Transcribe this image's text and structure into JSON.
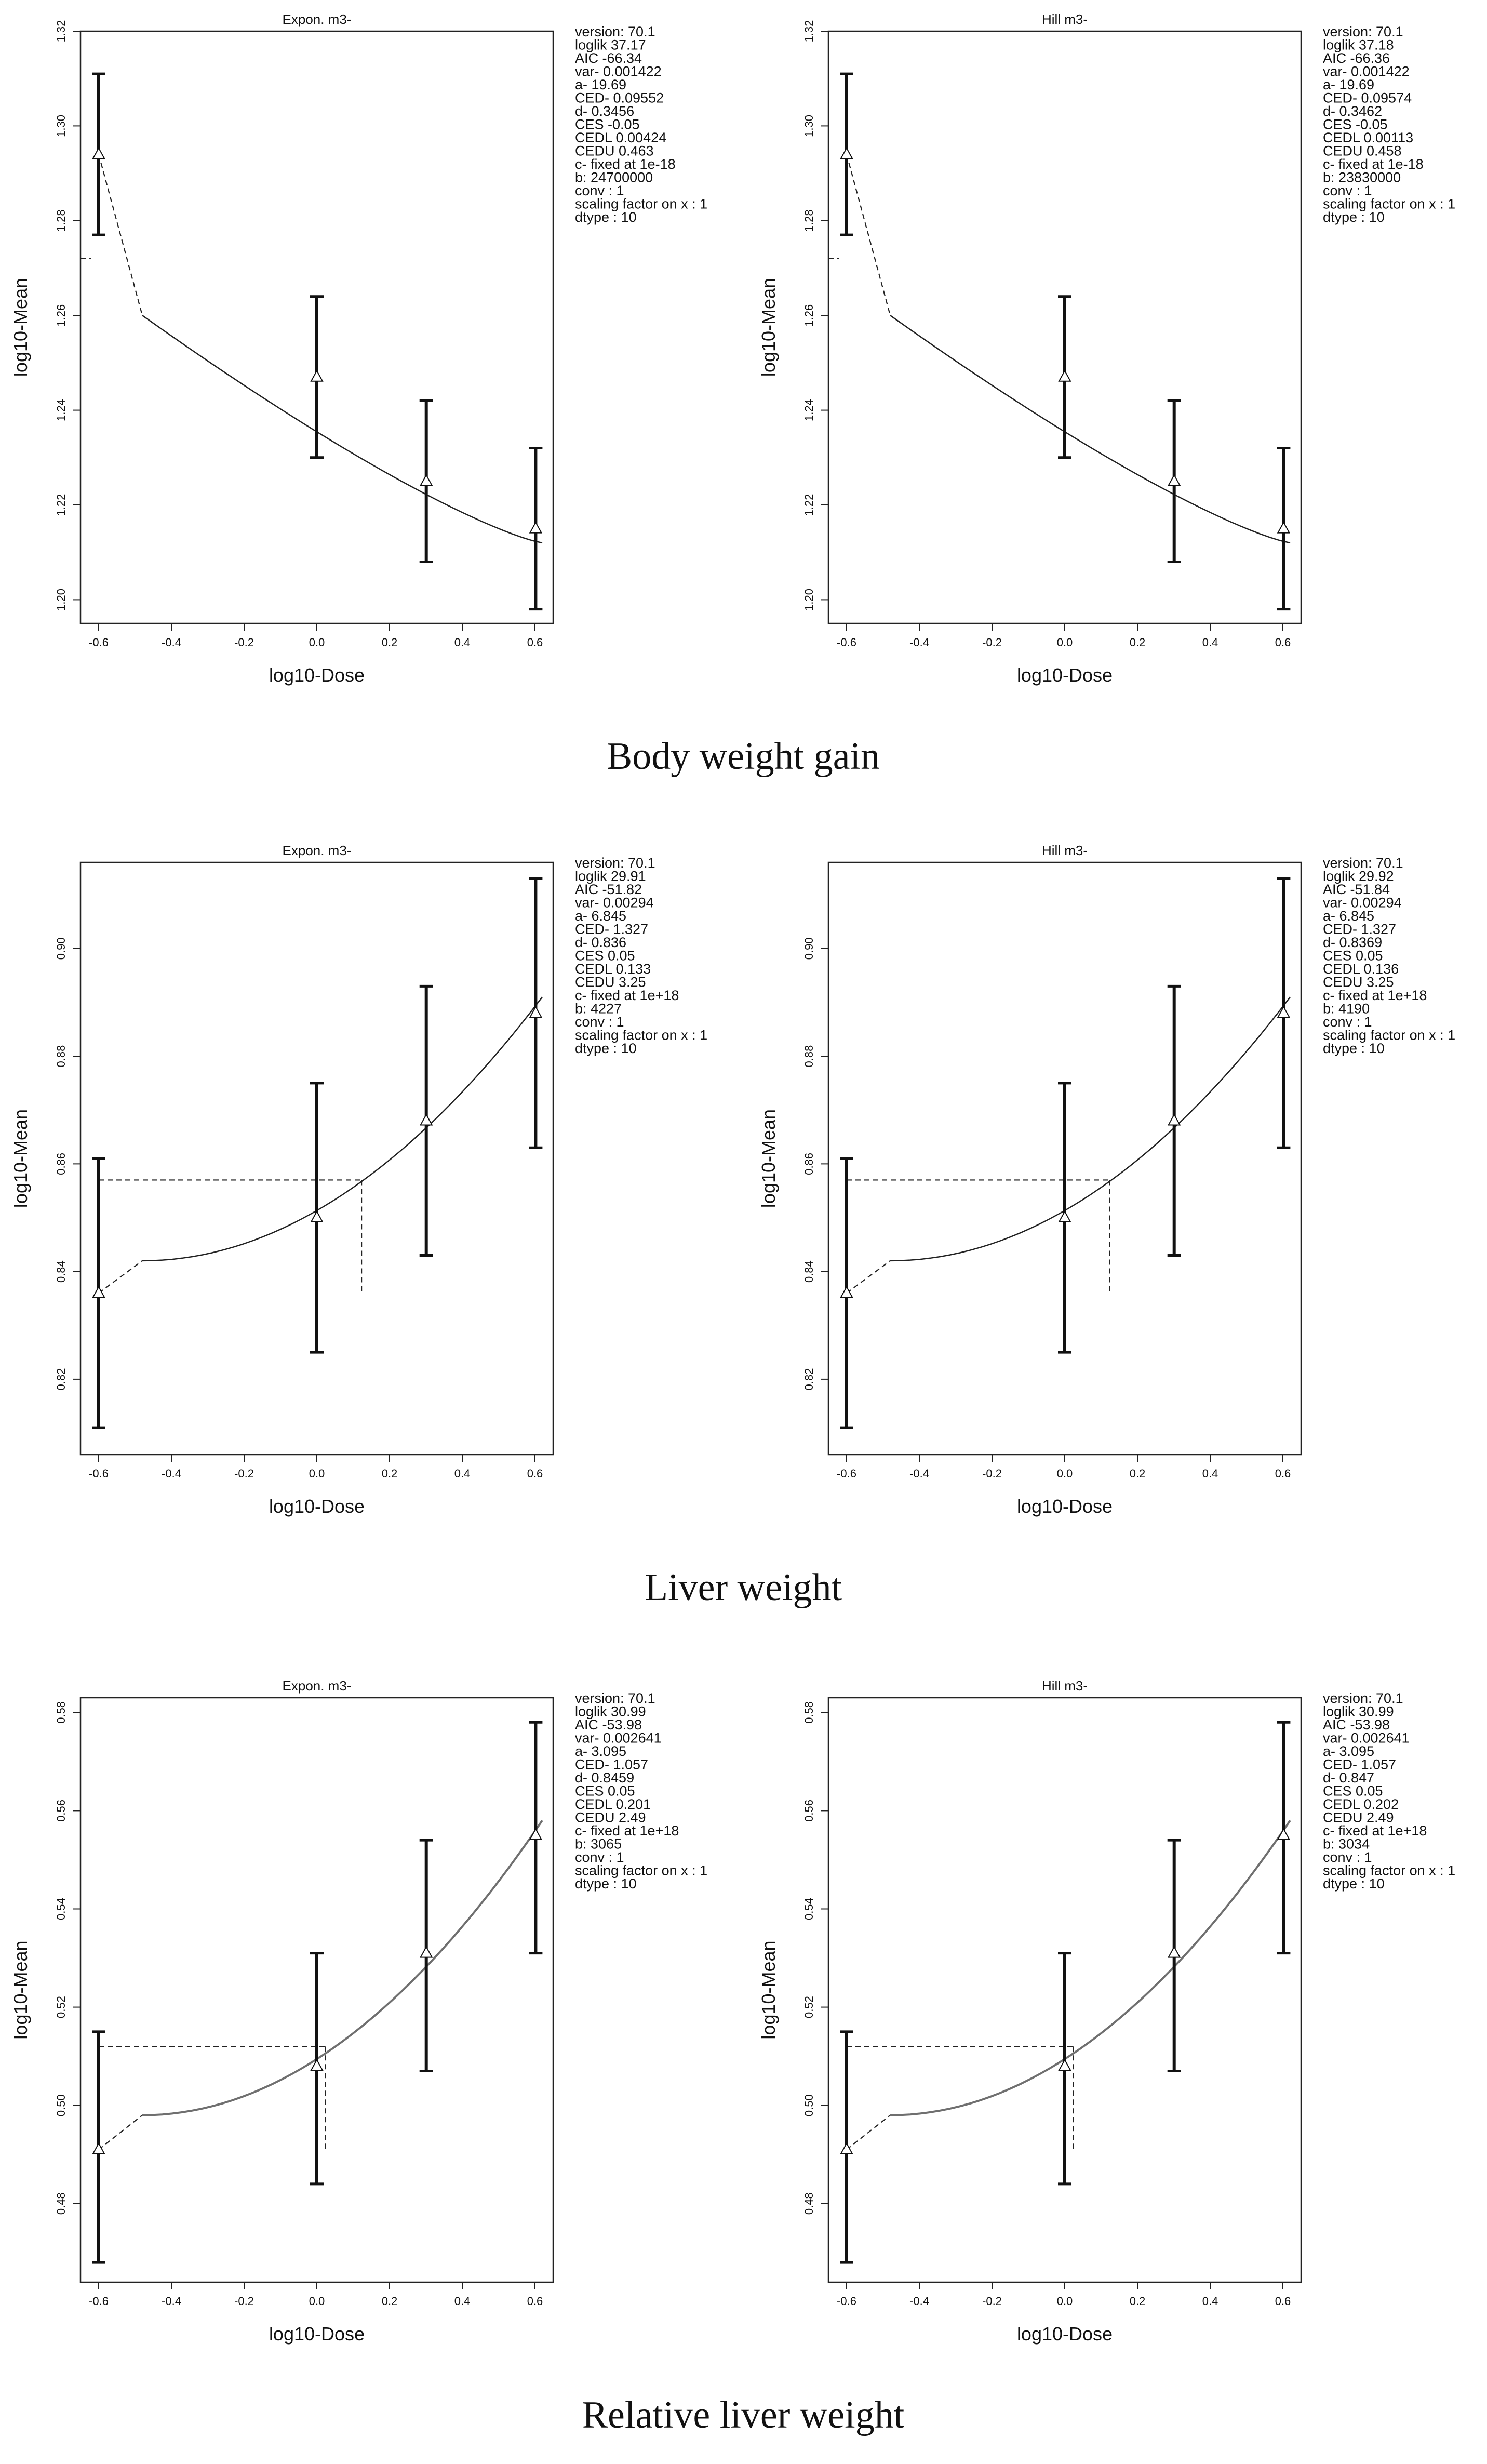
{
  "figure": {
    "captions": [
      "Body weight gain",
      "Liver weight",
      "Relative liver weight"
    ]
  },
  "chart_data": [
    {
      "type": "line",
      "section": "Body weight gain",
      "model": "exponential",
      "title": "Expon. m3-",
      "xlabel": "log10-Dose",
      "ylabel": "log10-Mean",
      "xlim": [
        -0.65,
        0.65
      ],
      "ylim": [
        1.195,
        1.32
      ],
      "xticks": [
        -0.6,
        -0.4,
        -0.2,
        0.0,
        0.2,
        0.4,
        0.6
      ],
      "xtick_labels": [
        "-0.6",
        "-0.4",
        "-0.2",
        "0.0",
        "0.2",
        "0.4",
        "0.6"
      ],
      "yticks": [
        1.2,
        1.22,
        1.24,
        1.26,
        1.28,
        1.3,
        1.32
      ],
      "ytick_labels": [
        "1.20",
        "1.22",
        "1.24",
        "1.26",
        "1.28",
        "1.30",
        "1.32"
      ],
      "points": [
        {
          "x": -0.6,
          "y": 1.294,
          "lo": 1.277,
          "hi": 1.311
        },
        {
          "x": 0.0,
          "y": 1.247,
          "lo": 1.23,
          "hi": 1.264
        },
        {
          "x": 0.301,
          "y": 1.225,
          "lo": 1.208,
          "hi": 1.242
        },
        {
          "x": 0.602,
          "y": 1.215,
          "lo": 1.198,
          "hi": 1.232
        }
      ],
      "curve": {
        "kind": "down",
        "a": 19.69,
        "b": 24700000,
        "d": 0.3456,
        "x0": -0.48,
        "y0": 1.26,
        "x1": 0.62,
        "y1": 1.212
      },
      "dashed": [
        {
          "x1": -0.6,
          "y1": 1.294,
          "x2": -0.48,
          "y2": 1.26
        },
        {
          "x1": -0.65,
          "y1": 1.272,
          "x2": -0.62,
          "y2": 1.272
        }
      ],
      "params": [
        "version: 70.1",
        "loglik   37.17",
        "AIC   -66.34",
        "var-   0.001422",
        "a-   19.69",
        "CED-   0.09552",
        "d-   0.3456",
        "CES   -0.05",
        "CEDL   0.00424",
        "CEDU   0.463",
        "c-  fixed at 1e-18",
        "b:  24700000",
        "conv :  1",
        "scaling factor on x :  1",
        "dtype :  10"
      ]
    },
    {
      "type": "line",
      "section": "Body weight gain",
      "model": "hill",
      "title": "Hill m3-",
      "xlabel": "log10-Dose",
      "ylabel": "log10-Mean",
      "xlim": [
        -0.65,
        0.65
      ],
      "ylim": [
        1.195,
        1.32
      ],
      "xticks": [
        -0.6,
        -0.4,
        -0.2,
        0.0,
        0.2,
        0.4,
        0.6
      ],
      "xtick_labels": [
        "-0.6",
        "-0.4",
        "-0.2",
        "0.0",
        "0.2",
        "0.4",
        "0.6"
      ],
      "yticks": [
        1.2,
        1.22,
        1.24,
        1.26,
        1.28,
        1.3,
        1.32
      ],
      "ytick_labels": [
        "1.20",
        "1.22",
        "1.24",
        "1.26",
        "1.28",
        "1.30",
        "1.32"
      ],
      "points": [
        {
          "x": -0.6,
          "y": 1.294,
          "lo": 1.277,
          "hi": 1.311
        },
        {
          "x": 0.0,
          "y": 1.247,
          "lo": 1.23,
          "hi": 1.264
        },
        {
          "x": 0.301,
          "y": 1.225,
          "lo": 1.208,
          "hi": 1.242
        },
        {
          "x": 0.602,
          "y": 1.215,
          "lo": 1.198,
          "hi": 1.232
        }
      ],
      "curve": {
        "kind": "down",
        "a": 19.69,
        "b": 23830000,
        "d": 0.3462,
        "x0": -0.48,
        "y0": 1.26,
        "x1": 0.62,
        "y1": 1.212
      },
      "dashed": [
        {
          "x1": -0.6,
          "y1": 1.294,
          "x2": -0.48,
          "y2": 1.26
        },
        {
          "x1": -0.65,
          "y1": 1.272,
          "x2": -0.62,
          "y2": 1.272
        }
      ],
      "params": [
        "version: 70.1",
        "loglik   37.18",
        "AIC   -66.36",
        "var-   0.001422",
        "a-   19.69",
        "CED-   0.09574",
        "d-   0.3462",
        "CES   -0.05",
        "CEDL   0.00113",
        "CEDU   0.458",
        "c-  fixed at 1e-18",
        "b:  23830000",
        "conv :  1",
        "scaling factor on x :  1",
        "dtype :  10"
      ]
    },
    {
      "type": "line",
      "section": "Liver weight",
      "model": "exponential",
      "title": "Expon. m3-",
      "xlabel": "log10-Dose",
      "ylabel": "log10-Mean",
      "xlim": [
        -0.65,
        0.65
      ],
      "ylim": [
        0.806,
        0.916
      ],
      "xticks": [
        -0.6,
        -0.4,
        -0.2,
        0.0,
        0.2,
        0.4,
        0.6
      ],
      "xtick_labels": [
        "-0.6",
        "-0.4",
        "-0.2",
        "0.0",
        "0.2",
        "0.4",
        "0.6"
      ],
      "yticks": [
        0.82,
        0.84,
        0.86,
        0.88,
        0.9
      ],
      "ytick_labels": [
        "0.82",
        "0.84",
        "0.86",
        "0.88",
        "0.90"
      ],
      "points": [
        {
          "x": -0.6,
          "y": 0.836,
          "lo": 0.811,
          "hi": 0.861
        },
        {
          "x": 0.0,
          "y": 0.85,
          "lo": 0.825,
          "hi": 0.875
        },
        {
          "x": 0.301,
          "y": 0.868,
          "lo": 0.843,
          "hi": 0.893
        },
        {
          "x": 0.602,
          "y": 0.888,
          "lo": 0.863,
          "hi": 0.913
        }
      ],
      "curve": {
        "kind": "up",
        "a": 6.845,
        "b": 4227,
        "d": 0.836,
        "x0": -0.48,
        "y0": 0.842,
        "x1": 0.62,
        "y1": 0.891
      },
      "dashed": [
        {
          "x1": -0.6,
          "y1": 0.836,
          "x2": -0.48,
          "y2": 0.842
        },
        {
          "x1": -0.6,
          "y1": 0.857,
          "x2": 0.123,
          "y2": 0.857
        },
        {
          "x1": 0.123,
          "y1": 0.857,
          "x2": 0.123,
          "y2": 0.836
        }
      ],
      "params": [
        "version: 70.1",
        "loglik   29.91",
        "AIC   -51.82",
        "var-   0.00294",
        "a-   6.845",
        "CED-   1.327",
        "d-   0.836",
        "CES   0.05",
        "CEDL   0.133",
        "CEDU   3.25",
        "c-  fixed at 1e+18",
        "b:  4227",
        "conv :  1",
        "scaling factor on x :  1",
        "dtype :  10"
      ]
    },
    {
      "type": "line",
      "section": "Liver weight",
      "model": "hill",
      "title": "Hill m3-",
      "xlabel": "log10-Dose",
      "ylabel": "log10-Mean",
      "xlim": [
        -0.65,
        0.65
      ],
      "ylim": [
        0.806,
        0.916
      ],
      "xticks": [
        -0.6,
        -0.4,
        -0.2,
        0.0,
        0.2,
        0.4,
        0.6
      ],
      "xtick_labels": [
        "-0.6",
        "-0.4",
        "-0.2",
        "0.0",
        "0.2",
        "0.4",
        "0.6"
      ],
      "yticks": [
        0.82,
        0.84,
        0.86,
        0.88,
        0.9
      ],
      "ytick_labels": [
        "0.82",
        "0.84",
        "0.86",
        "0.88",
        "0.90"
      ],
      "points": [
        {
          "x": -0.6,
          "y": 0.836,
          "lo": 0.811,
          "hi": 0.861
        },
        {
          "x": 0.0,
          "y": 0.85,
          "lo": 0.825,
          "hi": 0.875
        },
        {
          "x": 0.301,
          "y": 0.868,
          "lo": 0.843,
          "hi": 0.893
        },
        {
          "x": 0.602,
          "y": 0.888,
          "lo": 0.863,
          "hi": 0.913
        }
      ],
      "curve": {
        "kind": "up",
        "a": 6.845,
        "b": 4190,
        "d": 0.8369,
        "x0": -0.48,
        "y0": 0.842,
        "x1": 0.62,
        "y1": 0.891
      },
      "dashed": [
        {
          "x1": -0.6,
          "y1": 0.836,
          "x2": -0.48,
          "y2": 0.842
        },
        {
          "x1": -0.6,
          "y1": 0.857,
          "x2": 0.123,
          "y2": 0.857
        },
        {
          "x1": 0.123,
          "y1": 0.857,
          "x2": 0.123,
          "y2": 0.836
        }
      ],
      "params": [
        "version: 70.1",
        "loglik   29.92",
        "AIC   -51.84",
        "var-   0.00294",
        "a-   6.845",
        "CED-   1.327",
        "d-   0.8369",
        "CES   0.05",
        "CEDL   0.136",
        "CEDU   3.25",
        "c-  fixed at 1e+18",
        "b:  4190",
        "conv :  1",
        "scaling factor on x :  1",
        "dtype :  10"
      ]
    },
    {
      "type": "line",
      "section": "Relative liver weight",
      "model": "exponential",
      "title": "Expon. m3-",
      "xlabel": "log10-Dose",
      "ylabel": "log10-Mean",
      "xlim": [
        -0.65,
        0.65
      ],
      "ylim": [
        0.464,
        0.583
      ],
      "xticks": [
        -0.6,
        -0.4,
        -0.2,
        0.0,
        0.2,
        0.4,
        0.6
      ],
      "xtick_labels": [
        "-0.6",
        "-0.4",
        "-0.2",
        "0.0",
        "0.2",
        "0.4",
        "0.6"
      ],
      "yticks": [
        0.48,
        0.5,
        0.52,
        0.54,
        0.56,
        0.58
      ],
      "ytick_labels": [
        "0.48",
        "0.50",
        "0.52",
        "0.54",
        "0.56",
        "0.58"
      ],
      "points": [
        {
          "x": -0.6,
          "y": 0.491,
          "lo": 0.468,
          "hi": 0.515
        },
        {
          "x": 0.0,
          "y": 0.508,
          "lo": 0.484,
          "hi": 0.531
        },
        {
          "x": 0.301,
          "y": 0.531,
          "lo": 0.507,
          "hi": 0.554
        },
        {
          "x": 0.602,
          "y": 0.555,
          "lo": 0.531,
          "hi": 0.578
        }
      ],
      "curve": {
        "kind": "up",
        "a": 3.095,
        "b": 3065,
        "d": 0.8459,
        "x0": -0.48,
        "y0": 0.498,
        "x1": 0.62,
        "y1": 0.558
      },
      "dashed": [
        {
          "x1": -0.6,
          "y1": 0.491,
          "x2": -0.48,
          "y2": 0.498
        },
        {
          "x1": -0.6,
          "y1": 0.512,
          "x2": 0.024,
          "y2": 0.512
        },
        {
          "x1": 0.024,
          "y1": 0.512,
          "x2": 0.024,
          "y2": 0.491
        }
      ],
      "params": [
        "version: 70.1",
        "loglik   30.99",
        "AIC   -53.98",
        "var-   0.002641",
        "a-   3.095",
        "CED-   1.057",
        "d-   0.8459",
        "CES   0.05",
        "CEDL   0.201",
        "CEDU   2.49",
        "c-  fixed at 1e+18",
        "b:  3065",
        "conv :  1",
        "scaling factor on x :  1",
        "dtype :  10"
      ]
    },
    {
      "type": "line",
      "section": "Relative liver weight",
      "model": "hill",
      "title": "Hill m3-",
      "xlabel": "log10-Dose",
      "ylabel": "log10-Mean",
      "xlim": [
        -0.65,
        0.65
      ],
      "ylim": [
        0.464,
        0.583
      ],
      "xticks": [
        -0.6,
        -0.4,
        -0.2,
        0.0,
        0.2,
        0.4,
        0.6
      ],
      "xtick_labels": [
        "-0.6",
        "-0.4",
        "-0.2",
        "0.0",
        "0.2",
        "0.4",
        "0.6"
      ],
      "yticks": [
        0.48,
        0.5,
        0.52,
        0.54,
        0.56,
        0.58
      ],
      "ytick_labels": [
        "0.48",
        "0.50",
        "0.52",
        "0.54",
        "0.56",
        "0.58"
      ],
      "points": [
        {
          "x": -0.6,
          "y": 0.491,
          "lo": 0.468,
          "hi": 0.515
        },
        {
          "x": 0.0,
          "y": 0.508,
          "lo": 0.484,
          "hi": 0.531
        },
        {
          "x": 0.301,
          "y": 0.531,
          "lo": 0.507,
          "hi": 0.554
        },
        {
          "x": 0.602,
          "y": 0.555,
          "lo": 0.531,
          "hi": 0.578
        }
      ],
      "curve": {
        "kind": "up",
        "a": 3.095,
        "b": 3034,
        "d": 0.847,
        "x0": -0.48,
        "y0": 0.498,
        "x1": 0.62,
        "y1": 0.558
      },
      "dashed": [
        {
          "x1": -0.6,
          "y1": 0.491,
          "x2": -0.48,
          "y2": 0.498
        },
        {
          "x1": -0.6,
          "y1": 0.512,
          "x2": 0.024,
          "y2": 0.512
        },
        {
          "x1": 0.024,
          "y1": 0.512,
          "x2": 0.024,
          "y2": 0.491
        }
      ],
      "params": [
        "version: 70.1",
        "loglik   30.99",
        "AIC   -53.98",
        "var-   0.002641",
        "a-   3.095",
        "CED-   1.057",
        "d-   0.847",
        "CES   0.05",
        "CEDL   0.202",
        "CEDU   2.49",
        "c-  fixed at 1e+18",
        "b:  3034",
        "conv :  1",
        "scaling factor on x :  1",
        "dtype :  10"
      ]
    }
  ]
}
